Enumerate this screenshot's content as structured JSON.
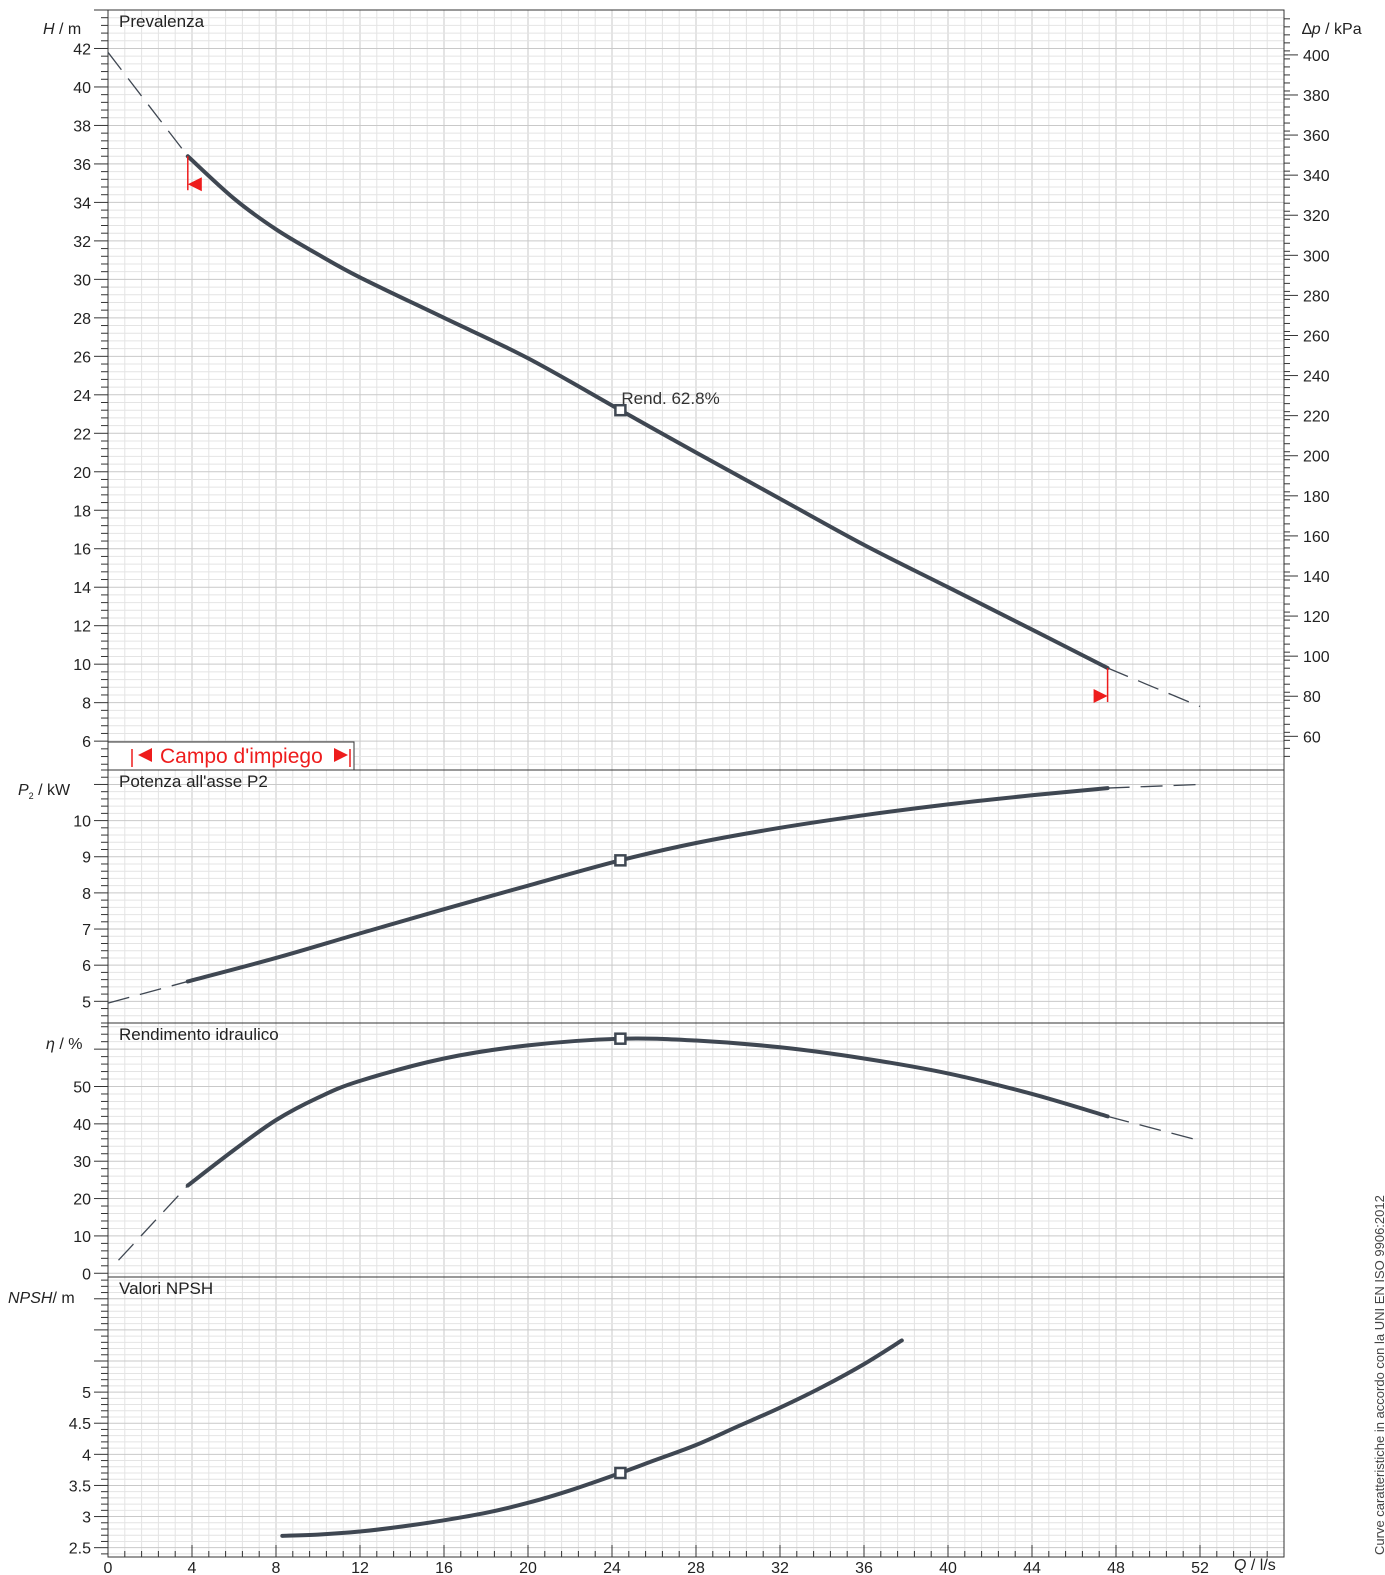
{
  "chart_data": [
    {
      "type": "line",
      "title": "Prevalenza",
      "ylabel": "H / m",
      "ylabel_right": "Δp / kPa",
      "xlabel": "Q / l/s",
      "xlim": [
        0,
        56
      ],
      "ylim": [
        4.5,
        44
      ],
      "yticks": [
        6,
        8,
        10,
        12,
        14,
        16,
        18,
        20,
        22,
        24,
        26,
        28,
        30,
        32,
        34,
        36,
        38,
        40,
        42
      ],
      "yticks_right": [
        60,
        80,
        100,
        120,
        140,
        160,
        180,
        200,
        220,
        240,
        260,
        280,
        300,
        320,
        340,
        360,
        380,
        400
      ],
      "series": [
        {
          "points": [
            [
              3.8,
              36.4
            ],
            [
              6,
              34.2
            ],
            [
              8,
              32.6
            ],
            [
              10,
              31.3
            ],
            [
              12,
              30.1
            ],
            [
              16,
              28.0
            ],
            [
              20,
              25.9
            ],
            [
              24.4,
              23.2
            ],
            [
              28,
              21.0
            ],
            [
              32,
              18.6
            ],
            [
              36,
              16.2
            ],
            [
              40,
              14.0
            ],
            [
              44,
              11.8
            ],
            [
              47.6,
              9.8
            ]
          ]
        }
      ],
      "extension_left": [
        [
          0,
          41.8
        ],
        [
          3.8,
          36.4
        ]
      ],
      "extension_right": [
        [
          47.6,
          9.8
        ],
        [
          52,
          7.8
        ]
      ],
      "duty_point": {
        "x": 24.4,
        "y": 23.2
      },
      "annotation": "Rend.  62.8%",
      "operating_range_label": "Campo d'impiego",
      "range_limits": [
        3.8,
        47.6
      ],
      "grid": true
    },
    {
      "type": "line",
      "title": "Potenza all'asse P2",
      "ylabel": "P₂ / kW",
      "xlim": [
        0,
        56
      ],
      "ylim": [
        4.4,
        11.4
      ],
      "yticks": [
        5,
        6,
        7,
        8,
        9,
        10
      ],
      "series": [
        {
          "points": [
            [
              3.8,
              5.55
            ],
            [
              8,
              6.2
            ],
            [
              12,
              6.88
            ],
            [
              16,
              7.55
            ],
            [
              20,
              8.2
            ],
            [
              24.4,
              8.9
            ],
            [
              28,
              9.38
            ],
            [
              32,
              9.8
            ],
            [
              36,
              10.15
            ],
            [
              40,
              10.45
            ],
            [
              44,
              10.7
            ],
            [
              47.6,
              10.9
            ]
          ]
        }
      ],
      "extension_left": [
        [
          0,
          4.95
        ],
        [
          3.8,
          5.55
        ]
      ],
      "extension_right": [
        [
          47.6,
          10.9
        ],
        [
          52,
          11.0
        ]
      ],
      "duty_point": {
        "x": 24.4,
        "y": 8.9
      },
      "grid": true
    },
    {
      "type": "line",
      "title": "Rendimento idraulico",
      "ylabel": "η / %",
      "xlim": [
        0,
        56
      ],
      "ylim": [
        -1,
        67
      ],
      "yticks": [
        0,
        10,
        20,
        30,
        40,
        50
      ],
      "series": [
        {
          "points": [
            [
              3.8,
              23.5
            ],
            [
              6,
              33
            ],
            [
              8,
              41
            ],
            [
              10,
              47
            ],
            [
              12,
              51.5
            ],
            [
              16,
              57.5
            ],
            [
              20,
              61
            ],
            [
              24.4,
              62.8
            ],
            [
              28,
              62.3
            ],
            [
              32,
              60.5
            ],
            [
              36,
              57.5
            ],
            [
              40,
              53.5
            ],
            [
              44,
              48
            ],
            [
              47.6,
              42
            ]
          ]
        }
      ],
      "extension_left": [
        [
          0.5,
          3.5
        ],
        [
          3.8,
          23.5
        ]
      ],
      "extension_right": [
        [
          47.6,
          42
        ],
        [
          52,
          35.5
        ]
      ],
      "duty_point": {
        "x": 24.4,
        "y": 62.8
      },
      "grid": true
    },
    {
      "type": "line",
      "title": "Valori NPSH",
      "ylabel": "NPSH / m",
      "xlim": [
        0,
        56
      ],
      "xticks": [
        0,
        4,
        8,
        12,
        16,
        20,
        24,
        28,
        32,
        36,
        40,
        44,
        48,
        52
      ],
      "ylim": [
        2.35,
        6.85
      ],
      "yticks": [
        2.5,
        3,
        3.5,
        4,
        4.5,
        5
      ],
      "ytick_labels": [
        "2.5",
        "3",
        "3.5",
        "4",
        "4.5",
        "5"
      ],
      "series": [
        {
          "points": [
            [
              8.3,
              2.69
            ],
            [
              10,
              2.71
            ],
            [
              12,
              2.76
            ],
            [
              14,
              2.84
            ],
            [
              16,
              2.94
            ],
            [
              18,
              3.06
            ],
            [
              20,
              3.22
            ],
            [
              22,
              3.42
            ],
            [
              24.4,
              3.7
            ],
            [
              26,
              3.9
            ],
            [
              28,
              4.15
            ],
            [
              30,
              4.45
            ],
            [
              32,
              4.75
            ],
            [
              34,
              5.08
            ],
            [
              36,
              5.45
            ],
            [
              37.8,
              5.83
            ]
          ]
        }
      ],
      "duty_point": {
        "x": 24.4,
        "y": 3.7
      },
      "grid": true
    }
  ],
  "side_note": "Curve caratteristiche in accordo con la UNI EN ISO 9906:2012"
}
